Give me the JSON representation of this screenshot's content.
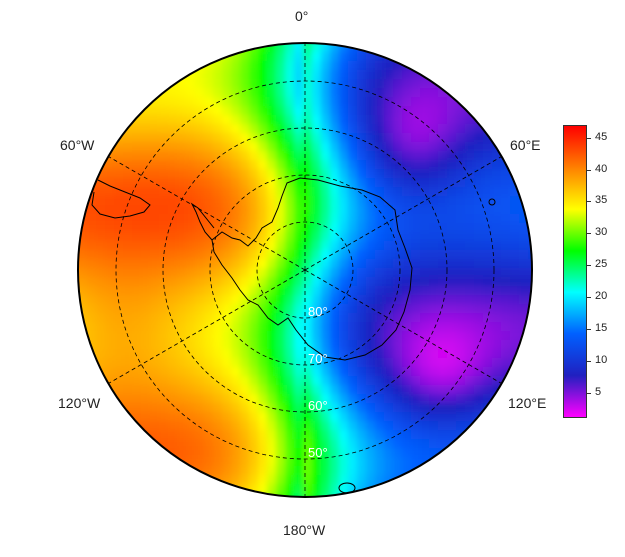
{
  "map": {
    "projection": "south-polar-stereographic",
    "lon_labels": {
      "top": "0°",
      "upper_right": "60°E",
      "lower_right": "120°E",
      "bottom": "180°W",
      "lower_left": "120°W",
      "upper_left": "60°W"
    },
    "lat_labels": [
      "80°",
      "70°",
      "60°",
      "50°"
    ],
    "colors": {
      "coastline": "#000000",
      "grid": "#000000",
      "lat_label": "#ffffff"
    }
  },
  "colorbar": {
    "ticks": [
      "5",
      "10",
      "15",
      "20",
      "25",
      "30",
      "35",
      "40",
      "45"
    ],
    "range": [
      1,
      47
    ],
    "palette": [
      "#ff0000",
      "#ff8000",
      "#ffff00",
      "#00ff00",
      "#00ffff",
      "#0060ff",
      "#2020c0",
      "#ff00ff"
    ]
  }
}
